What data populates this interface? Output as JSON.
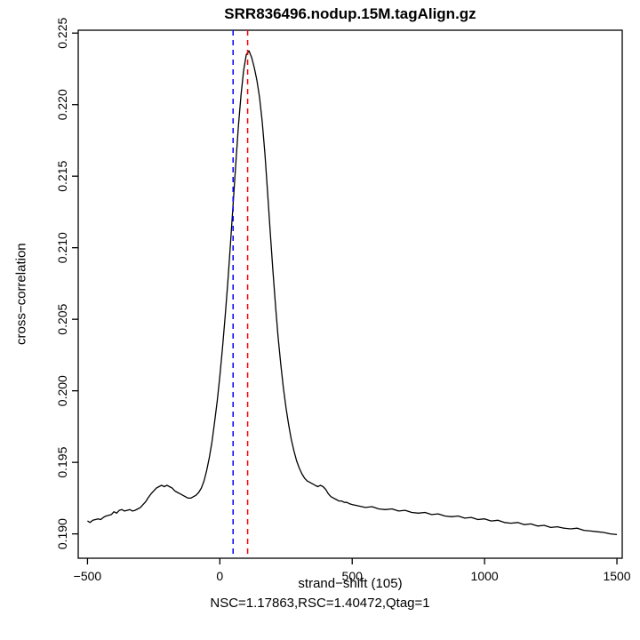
{
  "chart_data": {
    "type": "line",
    "title": "SRR836496.nodup.15M.tagAlign.gz",
    "xlabel": "strand−shift (105)",
    "ylabel": "cross−correlation",
    "sublabel": "NSC=1.17863,RSC=1.40472,Qtag=1",
    "xlim": [
      -535,
      1520
    ],
    "ylim": [
      0.1883,
      0.2252
    ],
    "grid": false,
    "legend": "none",
    "line_color": "#000000",
    "xticks": [
      -500,
      0,
      500,
      1000,
      1500
    ],
    "xtick_labels": [
      "−500",
      "0",
      "500",
      "1000",
      "1500"
    ],
    "yticks": [
      0.19,
      0.195,
      0.2,
      0.205,
      0.21,
      0.215,
      0.22,
      0.225
    ],
    "ytick_labels": [
      "0.190",
      "0.195",
      "0.200",
      "0.205",
      "0.210",
      "0.215",
      "0.220",
      "0.225"
    ],
    "vlines": [
      {
        "x": 50,
        "color": "#0000ff",
        "style": "dashed",
        "name": "phantom-peak-line"
      },
      {
        "x": 105,
        "color": "#ff0000",
        "style": "dashed",
        "name": "fragment-length-line"
      }
    ],
    "series": [
      {
        "name": "cross-correlation",
        "x": [
          -500,
          -490,
          -480,
          -470,
          -460,
          -450,
          -440,
          -430,
          -420,
          -410,
          -400,
          -390,
          -380,
          -370,
          -360,
          -350,
          -340,
          -330,
          -320,
          -310,
          -300,
          -290,
          -280,
          -270,
          -260,
          -250,
          -240,
          -230,
          -220,
          -210,
          -200,
          -190,
          -180,
          -170,
          -160,
          -150,
          -140,
          -130,
          -120,
          -110,
          -100,
          -90,
          -80,
          -70,
          -60,
          -50,
          -40,
          -30,
          -20,
          -10,
          0,
          10,
          20,
          30,
          40,
          50,
          60,
          70,
          80,
          90,
          100,
          110,
          120,
          130,
          140,
          150,
          160,
          170,
          180,
          190,
          200,
          210,
          220,
          230,
          240,
          250,
          260,
          270,
          280,
          290,
          300,
          310,
          320,
          330,
          340,
          350,
          360,
          370,
          380,
          390,
          400,
          410,
          420,
          430,
          440,
          450,
          460,
          470,
          480,
          490,
          500,
          525,
          550,
          575,
          600,
          625,
          650,
          675,
          700,
          725,
          750,
          775,
          800,
          825,
          850,
          875,
          900,
          925,
          950,
          975,
          1000,
          1025,
          1050,
          1075,
          1100,
          1125,
          1150,
          1175,
          1200,
          1225,
          1250,
          1275,
          1300,
          1325,
          1350,
          1375,
          1400,
          1425,
          1450,
          1475,
          1500
        ],
        "y": [
          0.1909,
          0.1908,
          0.19095,
          0.191,
          0.19105,
          0.191,
          0.19115,
          0.19125,
          0.1913,
          0.19135,
          0.19155,
          0.19145,
          0.19165,
          0.1917,
          0.1916,
          0.19165,
          0.1917,
          0.1916,
          0.19165,
          0.19175,
          0.19185,
          0.19205,
          0.19225,
          0.19255,
          0.1928,
          0.193,
          0.1932,
          0.1933,
          0.1934,
          0.1933,
          0.1934,
          0.1933,
          0.1932,
          0.193,
          0.1929,
          0.1928,
          0.1927,
          0.1926,
          0.1925,
          0.1925,
          0.1926,
          0.1927,
          0.1929,
          0.1932,
          0.1937,
          0.1944,
          0.1953,
          0.1964,
          0.1978,
          0.1993,
          0.201,
          0.203,
          0.2052,
          0.2076,
          0.2102,
          0.213,
          0.2158,
          0.2185,
          0.2207,
          0.2224,
          0.2235,
          0.22375,
          0.2233,
          0.2226,
          0.2217,
          0.2205,
          0.2188,
          0.2166,
          0.214,
          0.2112,
          0.2085,
          0.206,
          0.2038,
          0.2019,
          0.2002,
          0.1988,
          0.1976,
          0.1966,
          0.1958,
          0.1951,
          0.1946,
          0.1942,
          0.1939,
          0.1937,
          0.1936,
          0.1935,
          0.1934,
          0.1933,
          0.1934,
          0.1933,
          0.1931,
          0.1928,
          0.1926,
          0.1925,
          0.1924,
          0.1923,
          0.1923,
          0.1922,
          0.1922,
          0.1921,
          0.19205,
          0.19195,
          0.19185,
          0.1919,
          0.19175,
          0.1917,
          0.19175,
          0.1916,
          0.19165,
          0.1915,
          0.19145,
          0.1915,
          0.19135,
          0.1914,
          0.19125,
          0.1912,
          0.19125,
          0.1911,
          0.19115,
          0.191,
          0.19105,
          0.1909,
          0.19095,
          0.1908,
          0.19075,
          0.1908,
          0.19065,
          0.1907,
          0.19055,
          0.1906,
          0.19045,
          0.1905,
          0.1904,
          0.19035,
          0.1904,
          0.19025,
          0.1902,
          0.19015,
          0.1901,
          0.19,
          0.18995
        ]
      }
    ]
  }
}
